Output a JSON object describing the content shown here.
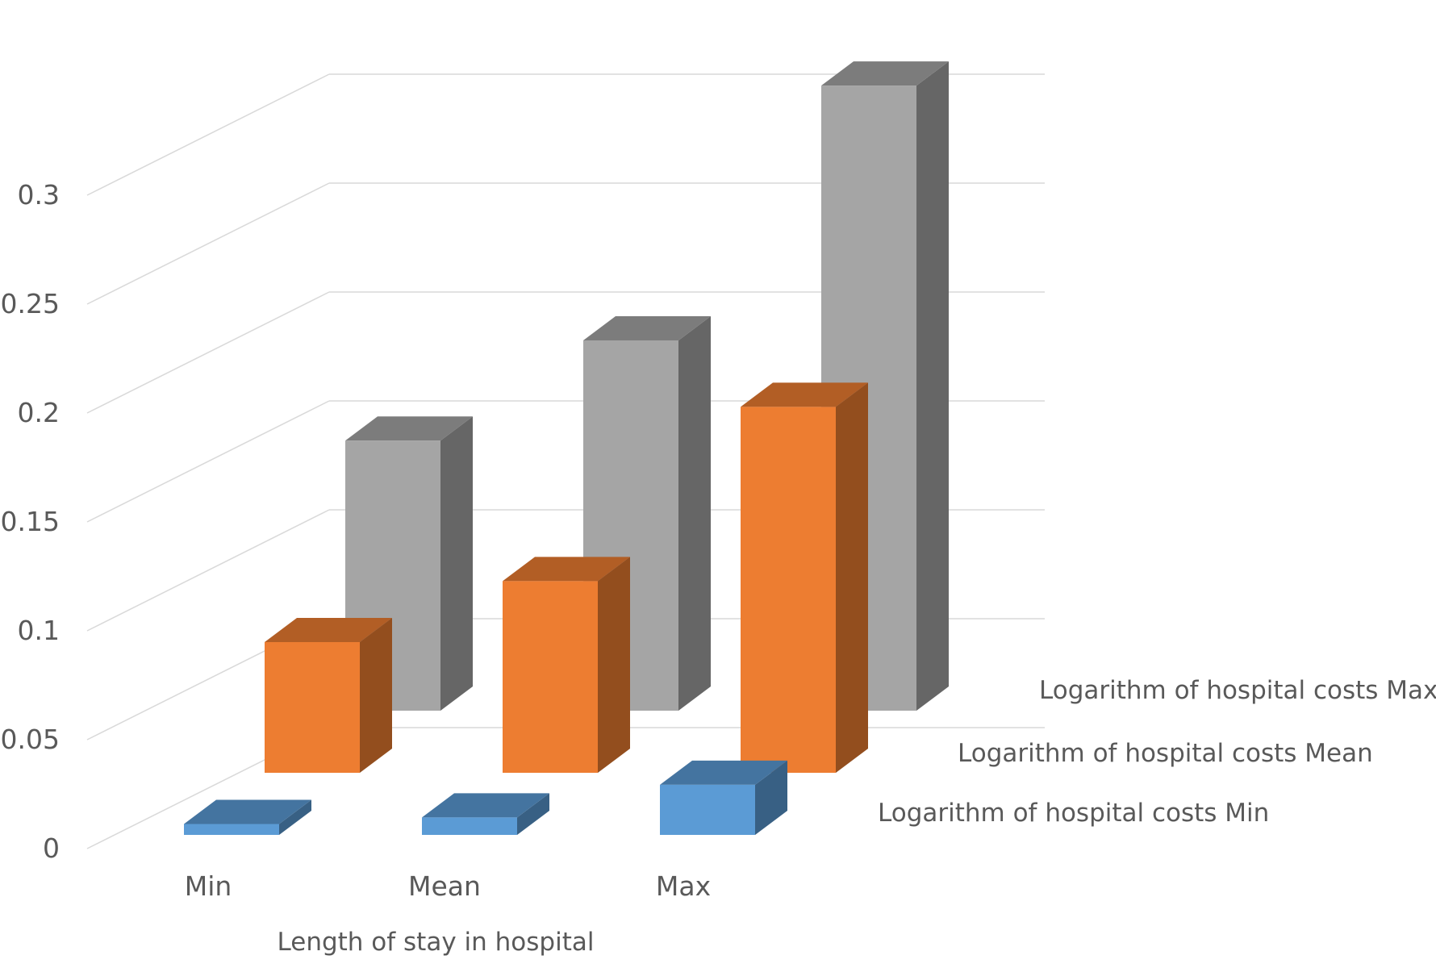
{
  "chart_data": {
    "type": "bar",
    "subtype": "3d-clustered-column",
    "xlabel": "Length of stay in hospital",
    "ylabel": "",
    "categories": [
      "Min",
      "Mean",
      "Max"
    ],
    "ylim": [
      0,
      0.3
    ],
    "y_ticks": [
      "0",
      "0.05",
      "0.1",
      "0.15",
      "0.2",
      "0.25",
      "0.3"
    ],
    "y_tick_values": [
      0,
      0.05,
      0.1,
      0.15,
      0.2,
      0.25,
      0.3
    ],
    "grid": true,
    "series": [
      {
        "name": "Logarithm of hospital costs Min",
        "values": [
          0.005,
          0.008,
          0.023
        ],
        "color": "#5b9bd5"
      },
      {
        "name": "Logarithm of hospital costs Mean",
        "values": [
          0.06,
          0.088,
          0.168
        ],
        "color": "#ed7d31"
      },
      {
        "name": "Logarithm of hospital costs Max",
        "values": [
          0.124,
          0.17,
          0.287
        ],
        "color": "#a5a5a5"
      }
    ]
  }
}
